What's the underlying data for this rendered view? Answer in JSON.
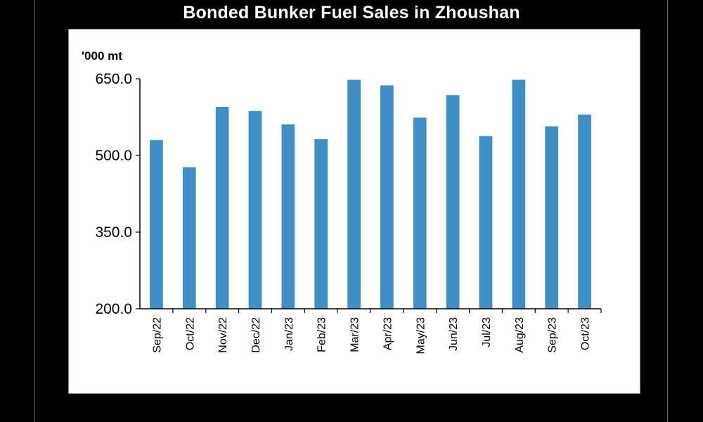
{
  "colors": {
    "background": "#000000",
    "panel": "#ffffff",
    "bar": "#3d8fc6",
    "axis": "#000000",
    "title": "#ffffff"
  },
  "chart_data": {
    "type": "bar",
    "title": "Bonded Bunker Fuel Sales in Zhoushan",
    "ylabel": "'000 mt",
    "xlabel": "",
    "ylim": [
      200,
      650
    ],
    "yticks": [
      "200.0",
      "350.0",
      "500.0",
      "650.0"
    ],
    "ytick_values": [
      200,
      350,
      500,
      650
    ],
    "grid": false,
    "categories": [
      "Sep/22",
      "Oct/22",
      "Nov/22",
      "Dec/22",
      "Jan/23",
      "Feb/23",
      "Mar/23",
      "Apr/23",
      "May/23",
      "Jun/23",
      "Jul/23",
      "Aug/23",
      "Sep/23",
      "Oct/23"
    ],
    "values": [
      530,
      477,
      595,
      587,
      561,
      532,
      648,
      637,
      574,
      618,
      538,
      648,
      557,
      580
    ]
  }
}
